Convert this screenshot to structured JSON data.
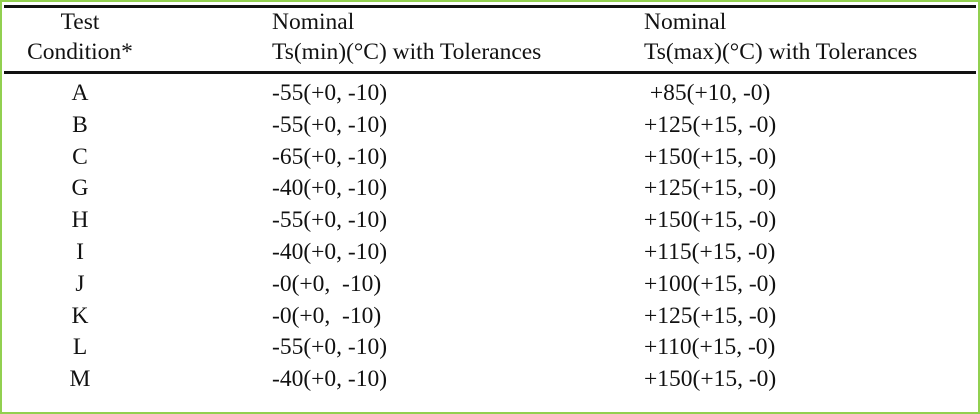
{
  "table": {
    "headers": [
      [
        "Test",
        "Condition*"
      ],
      [
        "Nominal",
        "Ts(min)(°C) with Tolerances"
      ],
      [
        "Nominal",
        "Ts(max)(°C) with Tolerances"
      ]
    ],
    "rows": [
      [
        "A",
        "-55(+0, -10)",
        " +85(+10, -0)"
      ],
      [
        "B",
        "-55(+0, -10)",
        "+125(+15, -0)"
      ],
      [
        "C",
        "-65(+0, -10)",
        "+150(+15, -0)"
      ],
      [
        "G",
        "-40(+0, -10)",
        "+125(+15, -0)"
      ],
      [
        "H",
        "-55(+0, -10)",
        "+150(+15, -0)"
      ],
      [
        "I",
        "-40(+0, -10)",
        "+115(+15, -0)"
      ],
      [
        "J",
        "-0(+0,  -10)",
        "+100(+15, -0)"
      ],
      [
        "K",
        "-0(+0,  -10)",
        "+125(+15, -0)"
      ],
      [
        "L",
        "-55(+0, -10)",
        "+110(+15, -0)"
      ],
      [
        "M",
        "-40(+0, -10)",
        "+150(+15, -0)"
      ]
    ]
  },
  "colors": {
    "border": "#92d050",
    "rule": "#111111"
  }
}
